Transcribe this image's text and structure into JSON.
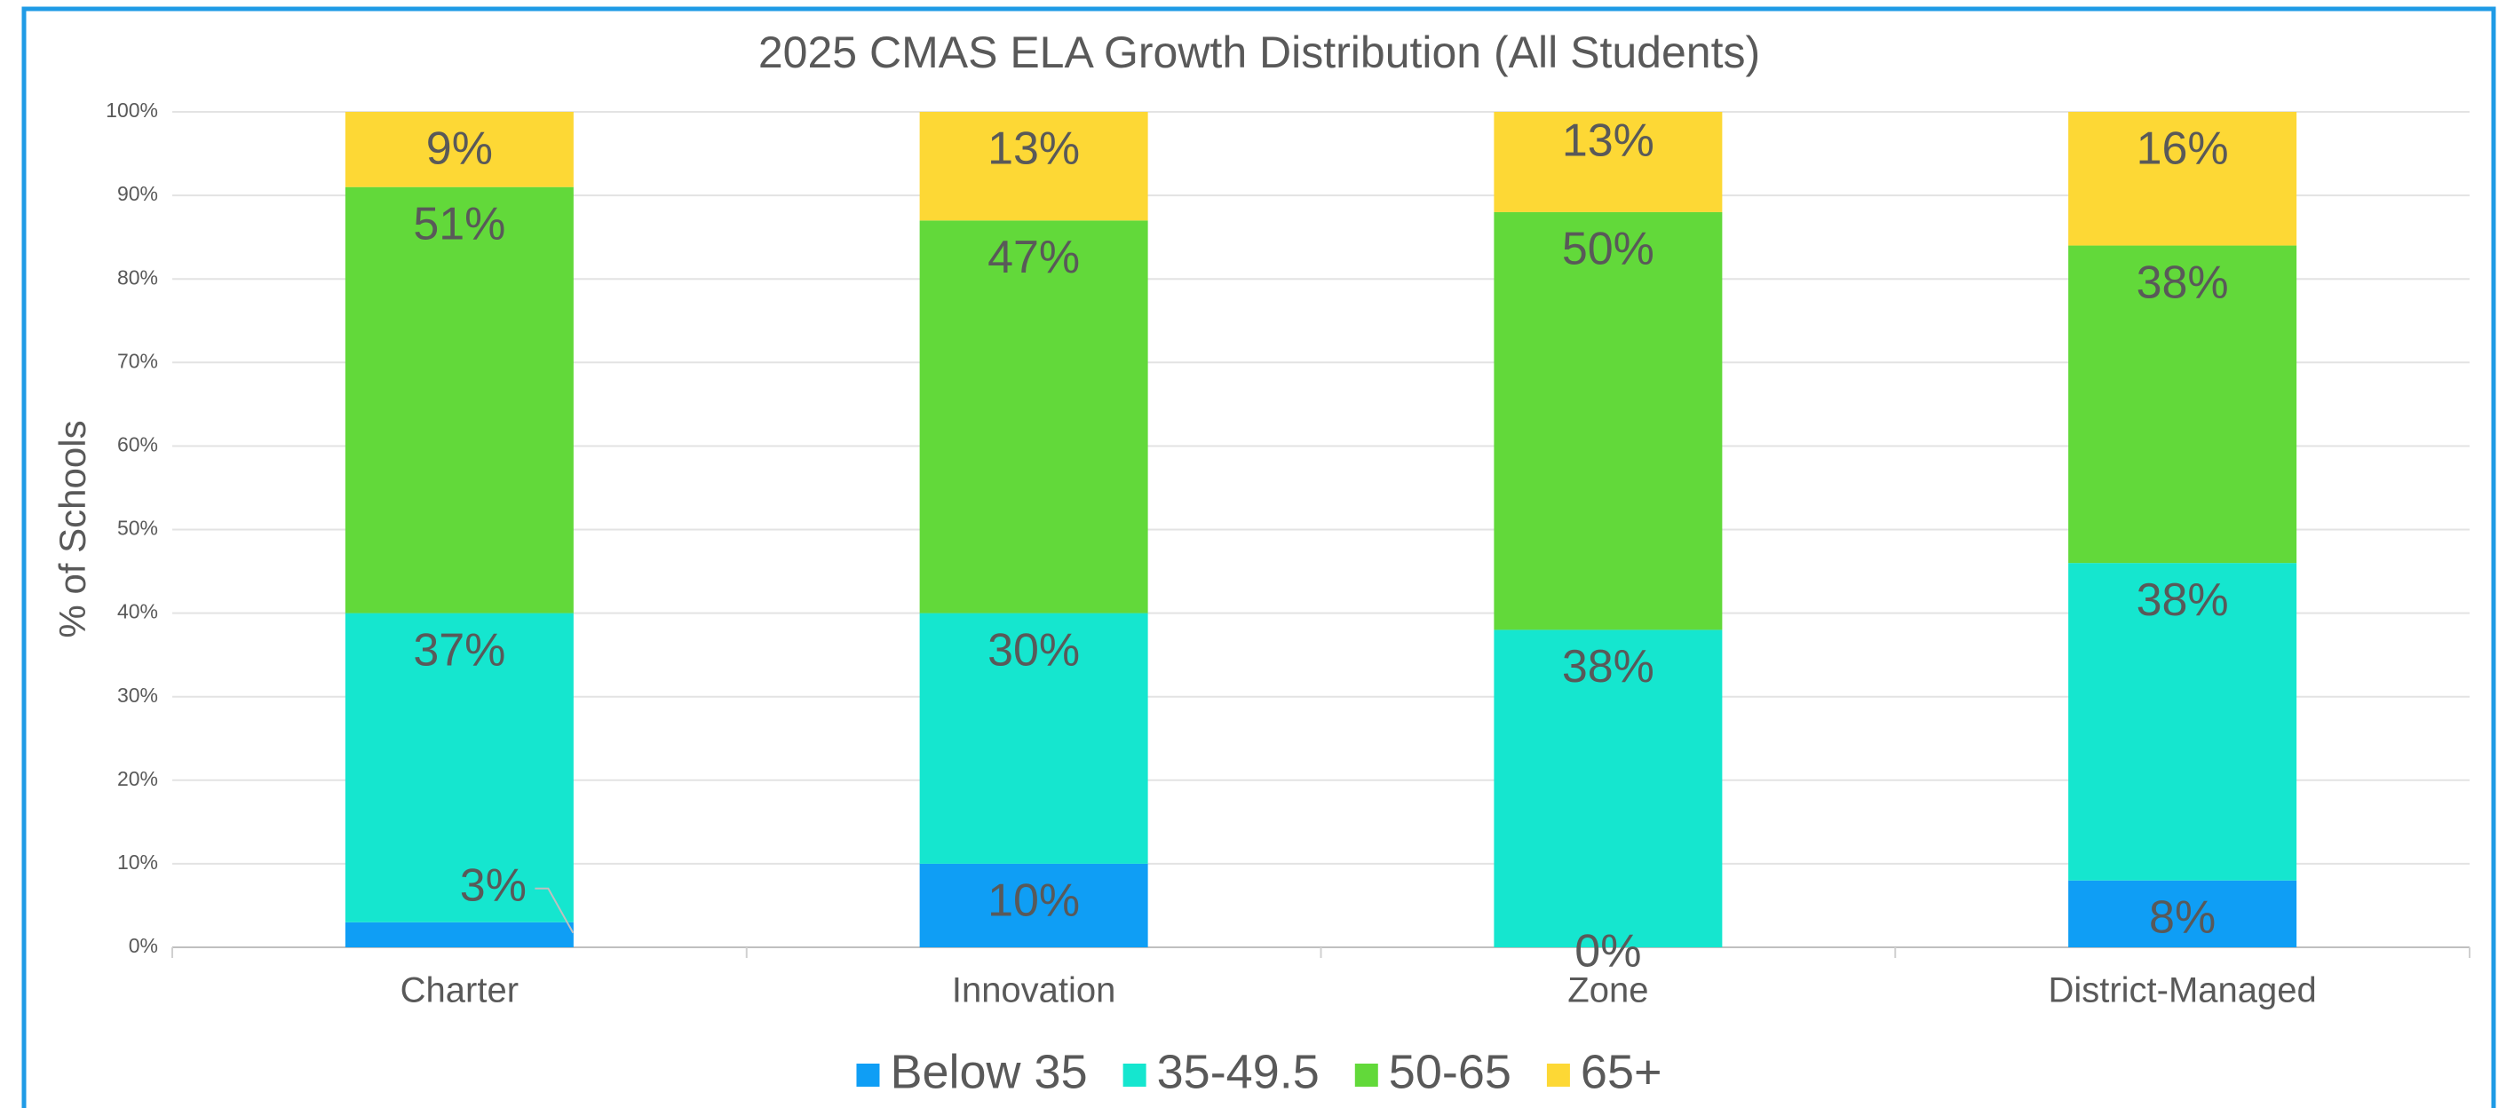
{
  "chart_data": {
    "type": "stacked_bar",
    "title": "2025 CMAS ELA Growth Distribution (All Students)",
    "y_label": "% of Schools",
    "categories": [
      "Charter",
      "Innovation",
      "Zone",
      "District-Managed"
    ],
    "series": [
      {
        "name": "Below 35",
        "color": "#0f9ef5",
        "values": [
          3,
          10,
          0,
          8
        ],
        "value_labels": [
          "3%",
          "10%",
          "0%",
          "8%"
        ]
      },
      {
        "name": "35-49.5",
        "color": "#15e6cf",
        "values": [
          37,
          30,
          38,
          38
        ],
        "value_labels": [
          "37%",
          "30%",
          "38%",
          "38%"
        ]
      },
      {
        "name": "50-65",
        "color": "#62d93a",
        "values": [
          51,
          47,
          50,
          38
        ],
        "value_labels": [
          "51%",
          "47%",
          "50%",
          "38%"
        ]
      },
      {
        "name": "65+",
        "color": "#fdd835",
        "values": [
          9,
          13,
          13,
          16
        ],
        "value_labels": [
          "9%",
          "13%",
          "13%",
          "16%"
        ]
      }
    ],
    "ylim": [
      0,
      100
    ],
    "yticks": [
      {
        "value": 0,
        "label": "0%"
      },
      {
        "value": 10,
        "label": "10%"
      },
      {
        "value": 20,
        "label": "20%"
      },
      {
        "value": 30,
        "label": "30%"
      },
      {
        "value": 40,
        "label": "40%"
      },
      {
        "value": 50,
        "label": "50%"
      },
      {
        "value": 60,
        "label": "60%"
      },
      {
        "value": 70,
        "label": "70%"
      },
      {
        "value": 80,
        "label": "80%"
      },
      {
        "value": 90,
        "label": "90%"
      },
      {
        "value": 100,
        "label": "100%"
      }
    ],
    "grid": true,
    "legend": "bottom"
  }
}
